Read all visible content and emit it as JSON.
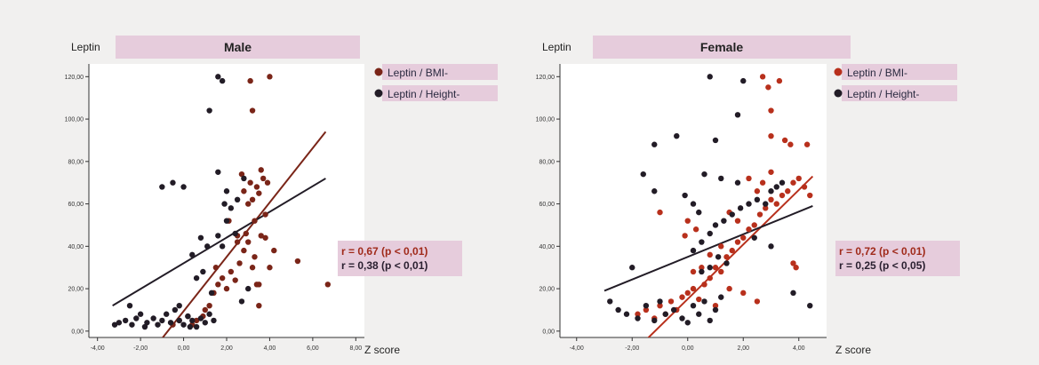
{
  "colors": {
    "bmi": "#7a2518",
    "height": "#221c26",
    "bmi_female": "#b8301c",
    "label_bg": "#e6ccdc",
    "plot_bg": "#ffffff"
  },
  "chart_data": [
    {
      "type": "scatter",
      "title": "Male",
      "ylabel": "Leptin",
      "xlabel": "Z score",
      "xlim": [
        -4.4,
        8.4
      ],
      "ylim": [
        -3,
        126
      ],
      "x_ticks": [
        "-4,00",
        "-2,00",
        "0,00",
        "2,00",
        "4,00",
        "6,00",
        "8,00"
      ],
      "x_tick_values": [
        -4,
        -2,
        0,
        2,
        4,
        6,
        8
      ],
      "y_ticks": [
        "0,00",
        "20,00",
        "40,00",
        "60,00",
        "80,00",
        "100,00",
        "120,00"
      ],
      "y_tick_values": [
        0,
        20,
        40,
        60,
        80,
        100,
        120
      ],
      "legend": [
        {
          "label": "Leptin / BMI-",
          "series": "bmi"
        },
        {
          "label": "Leptin / Height-",
          "series": "height"
        }
      ],
      "stats": [
        {
          "text": "r = 0,67  (p < 0,01)",
          "series": "bmi"
        },
        {
          "text": "r = 0,38  (p < 0,01)",
          "series": "height"
        }
      ],
      "series": [
        {
          "name": "Leptin / BMI-",
          "key": "bmi",
          "points": [
            [
              -0.5,
              3
            ],
            [
              -0.2,
              5
            ],
            [
              0.2,
              7
            ],
            [
              0.4,
              3
            ],
            [
              0.6,
              5
            ],
            [
              0.9,
              7
            ],
            [
              1.0,
              10
            ],
            [
              1.2,
              12
            ],
            [
              1.4,
              18
            ],
            [
              1.6,
              22
            ],
            [
              1.8,
              25
            ],
            [
              2.0,
              20
            ],
            [
              2.2,
              28
            ],
            [
              2.4,
              24
            ],
            [
              1.5,
              30
            ],
            [
              2.6,
              32
            ],
            [
              2.8,
              38
            ],
            [
              3.0,
              42
            ],
            [
              2.9,
              46
            ],
            [
              3.2,
              30
            ],
            [
              3.4,
              22
            ],
            [
              3.5,
              12
            ],
            [
              3.6,
              45
            ],
            [
              3.3,
              52
            ],
            [
              3.8,
              55
            ],
            [
              3.0,
              60
            ],
            [
              3.2,
              62
            ],
            [
              3.5,
              65
            ],
            [
              3.7,
              72
            ],
            [
              3.9,
              70
            ],
            [
              3.4,
              68
            ],
            [
              2.8,
              66
            ],
            [
              2.5,
              45
            ],
            [
              3.1,
              70
            ],
            [
              2.7,
              74
            ],
            [
              3.6,
              76
            ],
            [
              3.8,
              44
            ],
            [
              4.2,
              38
            ],
            [
              4.0,
              30
            ],
            [
              3.5,
              22
            ],
            [
              3.2,
              104
            ],
            [
              3.1,
              118
            ],
            [
              4.0,
              120
            ],
            [
              5.3,
              33
            ],
            [
              6.7,
              22
            ],
            [
              2.5,
              42
            ],
            [
              2.1,
              52
            ],
            [
              3.3,
              35
            ]
          ],
          "line": [
            [
              -1.2,
              -6
            ],
            [
              6.6,
              94
            ]
          ]
        },
        {
          "name": "Leptin / Height-",
          "key": "height",
          "points": [
            [
              -3.2,
              3
            ],
            [
              -3.0,
              4
            ],
            [
              -2.7,
              5
            ],
            [
              -2.4,
              3
            ],
            [
              -2.2,
              6
            ],
            [
              -2.0,
              8
            ],
            [
              -1.7,
              4
            ],
            [
              -1.4,
              6
            ],
            [
              -1.2,
              3
            ],
            [
              -1.0,
              5
            ],
            [
              -0.8,
              8
            ],
            [
              -0.6,
              4
            ],
            [
              -0.4,
              10
            ],
            [
              -0.2,
              12
            ],
            [
              0.0,
              3
            ],
            [
              0.2,
              7
            ],
            [
              0.4,
              5
            ],
            [
              0.6,
              2
            ],
            [
              0.8,
              6
            ],
            [
              1.0,
              4
            ],
            [
              1.2,
              8
            ],
            [
              1.4,
              5
            ],
            [
              0.6,
              25
            ],
            [
              0.9,
              28
            ],
            [
              1.1,
              40
            ],
            [
              1.3,
              18
            ],
            [
              0.4,
              36
            ],
            [
              0.8,
              44
            ],
            [
              1.6,
              45
            ],
            [
              1.8,
              40
            ],
            [
              2.0,
              52
            ],
            [
              1.9,
              60
            ],
            [
              2.2,
              58
            ],
            [
              2.4,
              46
            ],
            [
              2.5,
              62
            ],
            [
              2.0,
              66
            ],
            [
              1.6,
              75
            ],
            [
              2.8,
              72
            ],
            [
              -1.0,
              68
            ],
            [
              -0.5,
              70
            ],
            [
              0.0,
              68
            ],
            [
              1.2,
              104
            ],
            [
              1.6,
              120
            ],
            [
              1.8,
              118
            ],
            [
              -2.5,
              12
            ],
            [
              -1.8,
              2
            ],
            [
              2.7,
              14
            ],
            [
              3.0,
              20
            ],
            [
              -0.2,
              5
            ],
            [
              0.3,
              2
            ]
          ],
          "line": [
            [
              -3.3,
              12
            ],
            [
              6.6,
              72
            ]
          ]
        }
      ]
    },
    {
      "type": "scatter",
      "title": "Female",
      "ylabel": "Leptin",
      "xlabel": "Z score",
      "xlim": [
        -4.6,
        5.0
      ],
      "ylim": [
        -3,
        126
      ],
      "x_ticks": [
        "-4,00",
        "-2,00",
        "0,00",
        "2,00",
        "4,00"
      ],
      "x_tick_values": [
        -4,
        -2,
        0,
        2,
        4
      ],
      "y_ticks": [
        "0,00",
        "20,00",
        "40,00",
        "60,00",
        "80,00",
        "100,00",
        "120,00"
      ],
      "y_tick_values": [
        0,
        20,
        40,
        60,
        80,
        100,
        120
      ],
      "legend": [
        {
          "label": "Leptin / BMI-",
          "series": "bmi"
        },
        {
          "label": "Leptin / Height-",
          "series": "height"
        }
      ],
      "stats": [
        {
          "text": "r = 0,72  (p < 0,01)",
          "series": "bmi"
        },
        {
          "text": "r = 0,25  (p < 0,05)",
          "series": "height"
        }
      ],
      "series": [
        {
          "name": "Leptin / BMI-",
          "key": "bmi",
          "points": [
            [
              -1.8,
              8
            ],
            [
              -1.5,
              10
            ],
            [
              -1.2,
              6
            ],
            [
              -1.0,
              12
            ],
            [
              -0.8,
              8
            ],
            [
              -0.6,
              14
            ],
            [
              -0.4,
              10
            ],
            [
              -0.2,
              16
            ],
            [
              0.0,
              18
            ],
            [
              0.2,
              20
            ],
            [
              0.4,
              15
            ],
            [
              0.6,
              22
            ],
            [
              0.8,
              25
            ],
            [
              1.0,
              30
            ],
            [
              1.2,
              28
            ],
            [
              1.4,
              35
            ],
            [
              1.6,
              38
            ],
            [
              1.8,
              42
            ],
            [
              2.0,
              44
            ],
            [
              2.2,
              48
            ],
            [
              2.4,
              50
            ],
            [
              2.6,
              55
            ],
            [
              2.8,
              58
            ],
            [
              3.0,
              62
            ],
            [
              3.2,
              60
            ],
            [
              3.4,
              64
            ],
            [
              3.6,
              66
            ],
            [
              3.8,
              70
            ],
            [
              4.0,
              72
            ],
            [
              4.2,
              68
            ],
            [
              4.4,
              64
            ],
            [
              2.5,
              66
            ],
            [
              2.7,
              70
            ],
            [
              3.0,
              75
            ],
            [
              2.2,
              72
            ],
            [
              1.8,
              52
            ],
            [
              1.5,
              56
            ],
            [
              1.2,
              40
            ],
            [
              0.8,
              36
            ],
            [
              0.5,
              30
            ],
            [
              0.2,
              28
            ],
            [
              -0.1,
              45
            ],
            [
              -1.0,
              56
            ],
            [
              0.3,
              48
            ],
            [
              0.0,
              52
            ],
            [
              3.8,
              32
            ],
            [
              3.9,
              30
            ],
            [
              3.5,
              90
            ],
            [
              3.7,
              88
            ],
            [
              4.3,
              88
            ],
            [
              3.0,
              104
            ],
            [
              2.9,
              115
            ],
            [
              3.3,
              118
            ],
            [
              2.7,
              120
            ],
            [
              3.0,
              92
            ],
            [
              1.5,
              20
            ],
            [
              2.0,
              18
            ],
            [
              2.5,
              14
            ],
            [
              1.0,
              12
            ]
          ],
          "line": [
            [
              -1.8,
              -8
            ],
            [
              4.5,
              73
            ]
          ]
        },
        {
          "name": "Leptin / Height-",
          "key": "height",
          "points": [
            [
              -2.8,
              14
            ],
            [
              -2.5,
              10
            ],
            [
              -2.2,
              8
            ],
            [
              -2.0,
              30
            ],
            [
              -1.8,
              6
            ],
            [
              -1.5,
              12
            ],
            [
              -1.2,
              5
            ],
            [
              -1.0,
              14
            ],
            [
              -0.8,
              8
            ],
            [
              -0.5,
              10
            ],
            [
              -0.2,
              6
            ],
            [
              0.0,
              4
            ],
            [
              0.2,
              12
            ],
            [
              0.4,
              8
            ],
            [
              0.6,
              14
            ],
            [
              0.8,
              5
            ],
            [
              1.0,
              10
            ],
            [
              1.2,
              16
            ],
            [
              0.5,
              28
            ],
            [
              0.8,
              30
            ],
            [
              1.1,
              35
            ],
            [
              1.4,
              32
            ],
            [
              0.2,
              38
            ],
            [
              0.5,
              42
            ],
            [
              0.8,
              46
            ],
            [
              1.0,
              50
            ],
            [
              1.3,
              52
            ],
            [
              1.6,
              55
            ],
            [
              1.9,
              58
            ],
            [
              2.2,
              60
            ],
            [
              2.5,
              62
            ],
            [
              2.8,
              60
            ],
            [
              3.0,
              66
            ],
            [
              3.2,
              68
            ],
            [
              3.4,
              70
            ],
            [
              1.8,
              70
            ],
            [
              1.2,
              72
            ],
            [
              0.6,
              74
            ],
            [
              -0.1,
              64
            ],
            [
              0.2,
              60
            ],
            [
              0.4,
              56
            ],
            [
              -1.2,
              66
            ],
            [
              -1.6,
              74
            ],
            [
              -0.4,
              92
            ],
            [
              0.8,
              120
            ],
            [
              1.0,
              90
            ],
            [
              2.0,
              118
            ],
            [
              1.8,
              102
            ],
            [
              -1.2,
              88
            ],
            [
              2.4,
              44
            ],
            [
              3.0,
              40
            ],
            [
              3.8,
              18
            ],
            [
              4.4,
              12
            ]
          ],
          "line": [
            [
              -3.0,
              19
            ],
            [
              4.5,
              59
            ]
          ]
        }
      ]
    }
  ]
}
